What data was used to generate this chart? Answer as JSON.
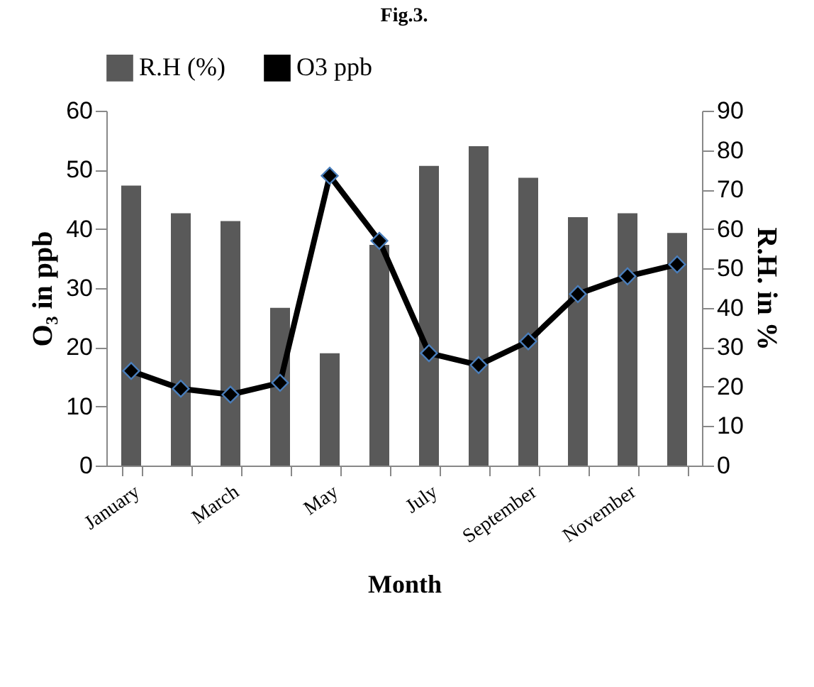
{
  "chart_data": {
    "type": "bar",
    "title": "Fig.3.",
    "xlabel": "Month",
    "ylabel": "O₃ in ppb",
    "y2label": "R.H. in %",
    "categories": [
      "January",
      null,
      "March",
      null,
      "May",
      null,
      "July",
      null,
      "September",
      null,
      "November",
      null
    ],
    "series": [
      {
        "name": "R.H (%)",
        "axis": "y2",
        "color": "#595959",
        "values": [
          71,
          64,
          62,
          40,
          28.5,
          56,
          76,
          81,
          73,
          63,
          64,
          59
        ]
      },
      {
        "name": "O3 ppb",
        "type": "line",
        "color": "#000000",
        "marker": "diamond",
        "line_style": "solid",
        "values": [
          16,
          13,
          12,
          14,
          49,
          38,
          19,
          17,
          21,
          29,
          32,
          34
        ]
      }
    ],
    "ylim": [
      0,
      60
    ],
    "yticks": [
      0,
      10,
      20,
      30,
      40,
      50,
      60
    ],
    "y2lim": [
      0,
      90
    ],
    "y2ticks": [
      0,
      10,
      20,
      30,
      40,
      50,
      60,
      70,
      80,
      90
    ],
    "grid": false,
    "legend": "top"
  }
}
